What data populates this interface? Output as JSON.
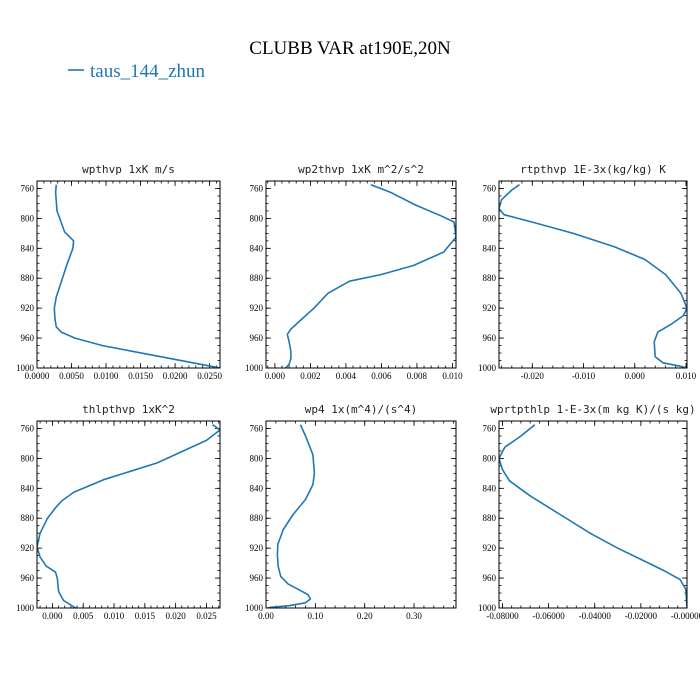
{
  "figure": {
    "title": "CLUBB VAR at190E,20N",
    "legend": {
      "label": "taus_144_zhun",
      "color": "#1f77b4"
    }
  },
  "chart_data": [
    {
      "type": "line",
      "title": "wpthvp  1xK m/s",
      "xlim": [
        0,
        0.0265
      ],
      "ylim": [
        1000,
        750
      ],
      "xticks": [
        0,
        0.005,
        0.01,
        0.015,
        0.02,
        0.025
      ],
      "xtick_labels": [
        "0.0000",
        "0.0050",
        "0.0100",
        "0.0150",
        "0.0200",
        "0.0250"
      ],
      "yticks": [
        760,
        800,
        840,
        880,
        920,
        960,
        1000
      ],
      "ytick_labels": [
        "760",
        "800",
        "840",
        "880",
        "920",
        "960",
        "1000"
      ],
      "series": [
        {
          "x": [
            0.0028,
            0.0027,
            0.0029,
            0.004,
            0.0053,
            0.0052,
            0.0044,
            0.0035,
            0.0028,
            0.0025,
            0.0026,
            0.0028,
            0.0035,
            0.0055,
            0.0095,
            0.018,
            0.0265
          ],
          "y": [
            755,
            765,
            790,
            818,
            830,
            840,
            860,
            885,
            905,
            920,
            935,
            945,
            952,
            960,
            970,
            985,
            1000
          ]
        }
      ]
    },
    {
      "type": "line",
      "title": "wp2thvp  1xK m^2/s^2",
      "xlim": [
        -0.0005,
        0.0102
      ],
      "ylim": [
        1000,
        750
      ],
      "xticks": [
        0,
        0.002,
        0.004,
        0.006,
        0.008,
        0.01
      ],
      "xtick_labels": [
        "0.000",
        "0.002",
        "0.004",
        "0.006",
        "0.008",
        "0.010"
      ],
      "yticks": [
        760,
        800,
        840,
        880,
        920,
        960,
        1000
      ],
      "ytick_labels": [
        "760",
        "800",
        "840",
        "880",
        "920",
        "960",
        "1000"
      ],
      "series": [
        {
          "x": [
            0.0054,
            0.0065,
            0.0079,
            0.0094,
            0.0101,
            0.0102,
            0.0095,
            0.0078,
            0.006,
            0.0042,
            0.003,
            0.0022,
            0.0015,
            0.0009,
            0.0007,
            0.0008,
            0.0009,
            0.0009,
            0.0008,
            0.0006
          ],
          "y": [
            755,
            765,
            782,
            797,
            805,
            825,
            845,
            863,
            875,
            884,
            900,
            920,
            935,
            948,
            955,
            965,
            978,
            987,
            995,
            1000
          ]
        }
      ]
    },
    {
      "type": "line",
      "title": "rtpthvp  1E-3x(kg/kg) K",
      "xlim": [
        -0.0265,
        0.0102
      ],
      "ylim": [
        1000,
        750
      ],
      "xticks": [
        -0.02,
        -0.01,
        0,
        0.01
      ],
      "xtick_labels": [
        "-0.020",
        "-0.010",
        "0.000",
        "0.010"
      ],
      "yticks": [
        760,
        800,
        840,
        880,
        920,
        960,
        1000
      ],
      "ytick_labels": [
        "760",
        "800",
        "840",
        "880",
        "920",
        "960",
        "1000"
      ],
      "series": [
        {
          "x": [
            -0.0225,
            -0.024,
            -0.026,
            -0.0265,
            -0.0255,
            -0.02,
            -0.012,
            -0.004,
            0.002,
            0.006,
            0.009,
            0.0102,
            0.0095,
            0.007,
            0.0045,
            0.0038,
            0.004,
            0.0055,
            0.0085,
            0.0102
          ],
          "y": [
            755,
            762,
            775,
            787,
            795,
            805,
            820,
            838,
            855,
            875,
            900,
            920,
            930,
            942,
            952,
            965,
            985,
            993,
            997,
            1000
          ]
        }
      ]
    },
    {
      "type": "line",
      "title": "thlpthvp  1xK^2",
      "xlim": [
        -0.0025,
        0.0272
      ],
      "ylim": [
        1000,
        750
      ],
      "xticks": [
        0,
        0.005,
        0.01,
        0.015,
        0.02,
        0.025
      ],
      "xtick_labels": [
        "0.000",
        "0.005",
        "0.010",
        "0.015",
        "0.020",
        "0.025"
      ],
      "yticks": [
        760,
        800,
        840,
        880,
        920,
        960,
        1000
      ],
      "ytick_labels": [
        "760",
        "800",
        "840",
        "880",
        "920",
        "960",
        "1000"
      ],
      "series": [
        {
          "x": [
            0.026,
            0.0272,
            0.025,
            0.017,
            0.0085,
            0.0035,
            0.0015,
            0.0005,
            -0.0008,
            -0.002,
            -0.0025,
            -0.002,
            -0.001,
            0.0005,
            0.0008,
            0.001,
            0.0018,
            0.0038
          ],
          "y": [
            755,
            762,
            776,
            806,
            828,
            845,
            857,
            866,
            880,
            900,
            918,
            932,
            944,
            952,
            960,
            978,
            990,
            1000
          ]
        }
      ]
    },
    {
      "type": "line",
      "title": "wp4  1x(m^4)/(s^4)",
      "xlim": [
        0,
        0.385
      ],
      "ylim": [
        1000,
        750
      ],
      "xticks": [
        0,
        0.1,
        0.2,
        0.3
      ],
      "xtick_labels": [
        "0.00",
        "0.10",
        "0.20",
        "0.30"
      ],
      "yticks": [
        760,
        800,
        840,
        880,
        920,
        960,
        1000
      ],
      "ytick_labels": [
        "760",
        "800",
        "840",
        "880",
        "920",
        "960",
        "1000"
      ],
      "series": [
        {
          "x": [
            0.07,
            0.08,
            0.095,
            0.098,
            0.095,
            0.08,
            0.055,
            0.035,
            0.024,
            0.023,
            0.025,
            0.03,
            0.045,
            0.065,
            0.085,
            0.09,
            0.08,
            0.045,
            0.01,
            0.003
          ],
          "y": [
            755,
            770,
            795,
            820,
            835,
            855,
            875,
            895,
            915,
            930,
            945,
            958,
            968,
            975,
            982,
            988,
            993,
            997,
            999,
            1000
          ]
        }
      ]
    },
    {
      "type": "line",
      "title": "wprtpthlp  1-E-3x(m kg K)/(s kg)",
      "xlim": [
        -0.0815,
        0
      ],
      "ylim": [
        1000,
        750
      ],
      "xticks": [
        -0.08,
        -0.06,
        -0.04,
        -0.02,
        0
      ],
      "xtick_labels": [
        "-0.08000",
        "-0.06000",
        "-0.04000",
        "-0.02000",
        "-0.00000"
      ],
      "yticks": [
        760,
        800,
        840,
        880,
        920,
        960,
        1000
      ],
      "ytick_labels": [
        "760",
        "800",
        "840",
        "880",
        "920",
        "960",
        "1000"
      ],
      "series": [
        {
          "x": [
            -0.066,
            -0.072,
            -0.079,
            -0.0815,
            -0.08,
            -0.077,
            -0.068,
            -0.055,
            -0.042,
            -0.03,
            -0.02,
            -0.01,
            -0.003,
            -0.0005,
            0
          ],
          "y": [
            755,
            770,
            785,
            800,
            815,
            830,
            850,
            875,
            900,
            920,
            935,
            950,
            962,
            975,
            1000
          ]
        }
      ]
    }
  ]
}
